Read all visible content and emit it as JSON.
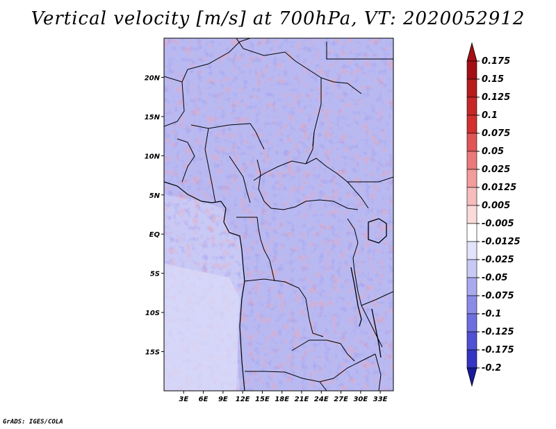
{
  "title": "Vertical velocity [m/s] at 700hPa, VT: 2020052912",
  "credit": "GrADS: IGES/COLA",
  "map": {
    "lon_range": [
      0,
      35
    ],
    "lat_range": [
      -20,
      25
    ],
    "lat_ticks": [
      {
        "value": 20,
        "label": "20N"
      },
      {
        "value": 15,
        "label": "15N"
      },
      {
        "value": 10,
        "label": "10N"
      },
      {
        "value": 5,
        "label": "5N"
      },
      {
        "value": 0,
        "label": "EQ"
      },
      {
        "value": -5,
        "label": "5S"
      },
      {
        "value": -10,
        "label": "10S"
      },
      {
        "value": -15,
        "label": "15S"
      }
    ],
    "lon_ticks": [
      {
        "value": 3,
        "label": "3E"
      },
      {
        "value": 6,
        "label": "6E"
      },
      {
        "value": 9,
        "label": "9E"
      },
      {
        "value": 12,
        "label": "12E"
      },
      {
        "value": 15,
        "label": "15E"
      },
      {
        "value": 18,
        "label": "18E"
      },
      {
        "value": 21,
        "label": "21E"
      },
      {
        "value": 24,
        "label": "24E"
      },
      {
        "value": 27,
        "label": "27E"
      },
      {
        "value": 30,
        "label": "30E"
      },
      {
        "value": 33,
        "label": "33E"
      }
    ]
  },
  "colorbar": {
    "levels": [
      {
        "label": "0.175",
        "color": "#a30f15"
      },
      {
        "label": "0.15",
        "color": "#b71c1c"
      },
      {
        "label": "0.125",
        "color": "#c62828"
      },
      {
        "label": "0.1",
        "color": "#d32f2f"
      },
      {
        "label": "0.075",
        "color": "#e05555"
      },
      {
        "label": "0.05",
        "color": "#ea7a7a"
      },
      {
        "label": "0.025",
        "color": "#f29c9c"
      },
      {
        "label": "0.0125",
        "color": "#f7bcbc"
      },
      {
        "label": "0.005",
        "color": "#fbdada"
      },
      {
        "label": "-0.005",
        "color": "#ffffff"
      },
      {
        "label": "-0.0125",
        "color": "#e3e3fb"
      },
      {
        "label": "-0.025",
        "color": "#c9c9f6"
      },
      {
        "label": "-0.05",
        "color": "#a9a9ef"
      },
      {
        "label": "-0.075",
        "color": "#8b8be8"
      },
      {
        "label": "-0.1",
        "color": "#6e6ee0"
      },
      {
        "label": "-0.125",
        "color": "#5050d4"
      },
      {
        "label": "-0.175",
        "color": "#3535c2"
      },
      {
        "label": "-0.2",
        "color": "#2020a8"
      }
    ],
    "top_color": "#a30f15",
    "bottom_color": "#1a1a9c"
  }
}
